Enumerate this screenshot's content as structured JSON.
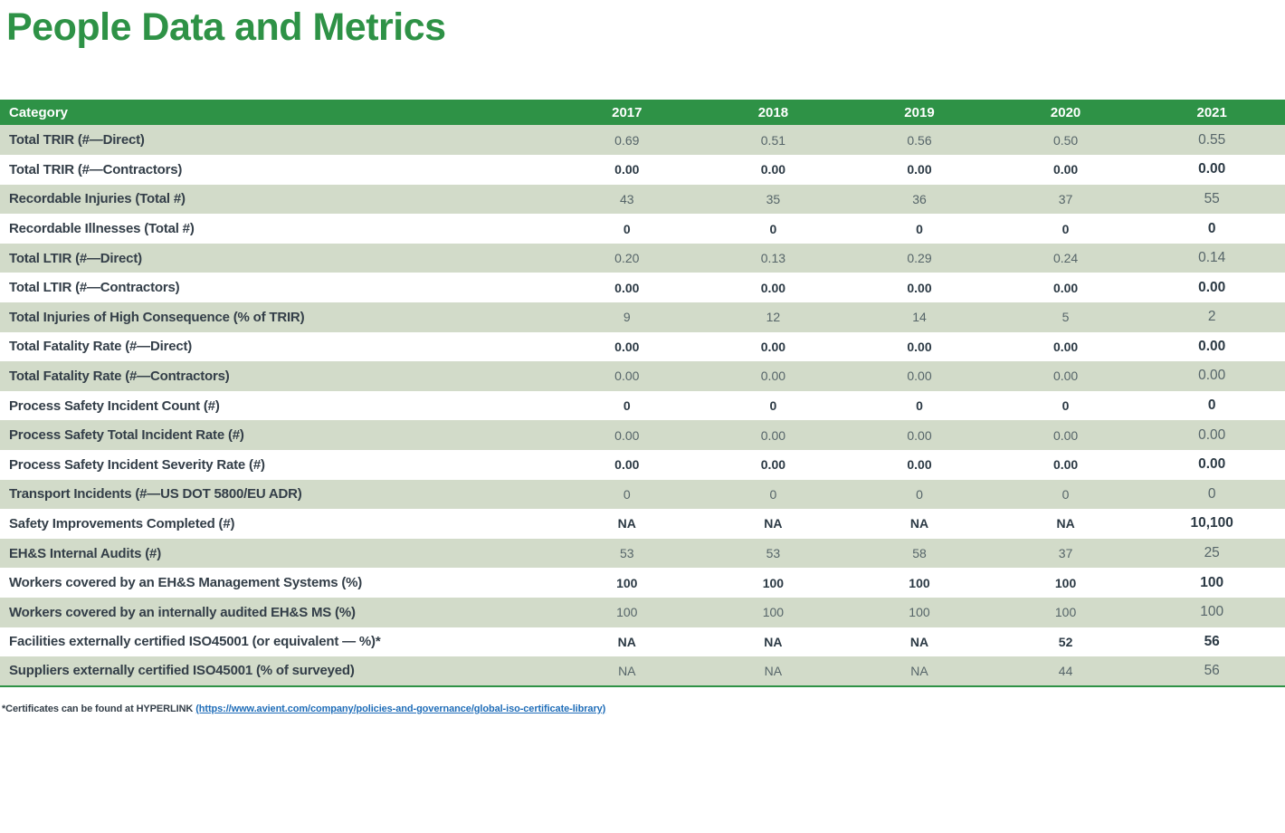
{
  "page": {
    "title": "People Data and Metrics"
  },
  "colors": {
    "brand_green": "#2e9246",
    "row_sage": "#d2dbc9",
    "text_dark": "#333e48",
    "link_blue": "#1f6db8"
  },
  "table": {
    "columns": [
      "Category",
      "2017",
      "2018",
      "2019",
      "2020",
      "2021"
    ],
    "rows": [
      {
        "category": "Total TRIR (#—Direct)",
        "values": [
          "0.69",
          "0.51",
          "0.56",
          "0.50",
          "0.55"
        ]
      },
      {
        "category": "Total TRIR (#—Contractors)",
        "values": [
          "0.00",
          "0.00",
          "0.00",
          "0.00",
          "0.00"
        ]
      },
      {
        "category": "Recordable Injuries (Total #)",
        "values": [
          "43",
          "35",
          "36",
          "37",
          "55"
        ]
      },
      {
        "category": "Recordable Illnesses (Total #)",
        "values": [
          "0",
          "0",
          "0",
          "0",
          "0"
        ]
      },
      {
        "category": "Total LTIR (#—Direct)",
        "values": [
          "0.20",
          "0.13",
          "0.29",
          "0.24",
          "0.14"
        ]
      },
      {
        "category": "Total LTIR (#—Contractors)",
        "values": [
          "0.00",
          "0.00",
          "0.00",
          "0.00",
          "0.00"
        ]
      },
      {
        "category": "Total Injuries of High Consequence (% of TRIR)",
        "values": [
          "9",
          "12",
          "14",
          "5",
          "2"
        ]
      },
      {
        "category": "Total Fatality Rate (#—Direct)",
        "values": [
          "0.00",
          "0.00",
          "0.00",
          "0.00",
          "0.00"
        ]
      },
      {
        "category": "Total Fatality Rate (#—Contractors)",
        "values": [
          "0.00",
          "0.00",
          "0.00",
          "0.00",
          "0.00"
        ]
      },
      {
        "category": "Process Safety Incident Count (#)",
        "values": [
          "0",
          "0",
          "0",
          "0",
          "0"
        ]
      },
      {
        "category": "Process Safety Total Incident Rate (#)",
        "values": [
          "0.00",
          "0.00",
          "0.00",
          "0.00",
          "0.00"
        ]
      },
      {
        "category": "Process Safety Incident Severity Rate (#)",
        "values": [
          "0.00",
          "0.00",
          "0.00",
          "0.00",
          "0.00"
        ]
      },
      {
        "category": "Transport Incidents (#—US DOT 5800/EU ADR)",
        "values": [
          "0",
          "0",
          "0",
          "0",
          "0"
        ]
      },
      {
        "category": "Safety Improvements Completed (#)",
        "values": [
          "NA",
          "NA",
          "NA",
          "NA",
          "10,100"
        ]
      },
      {
        "category": "EH&S Internal Audits (#)",
        "values": [
          "53",
          "53",
          "58",
          "37",
          "25"
        ]
      },
      {
        "category": "Workers covered by an EH&S Management Systems (%)",
        "values": [
          "100",
          "100",
          "100",
          "100",
          "100"
        ]
      },
      {
        "category": "Workers covered by an internally audited EH&S MS (%)",
        "values": [
          "100",
          "100",
          "100",
          "100",
          "100"
        ]
      },
      {
        "category": "Facilities externally certified ISO45001 (or equivalent — %)*",
        "values": [
          "NA",
          "NA",
          "NA",
          "52",
          "56"
        ]
      },
      {
        "category": "Suppliers externally certified ISO45001 (% of surveyed)",
        "values": [
          "NA",
          "NA",
          "NA",
          "44",
          "56"
        ]
      }
    ]
  },
  "footnote": {
    "prefix": "*Certificates can be found at HYPERLINK ",
    "link": "(https://www.avient.com/company/policies-and-governance/global-iso-certificate-library)"
  }
}
